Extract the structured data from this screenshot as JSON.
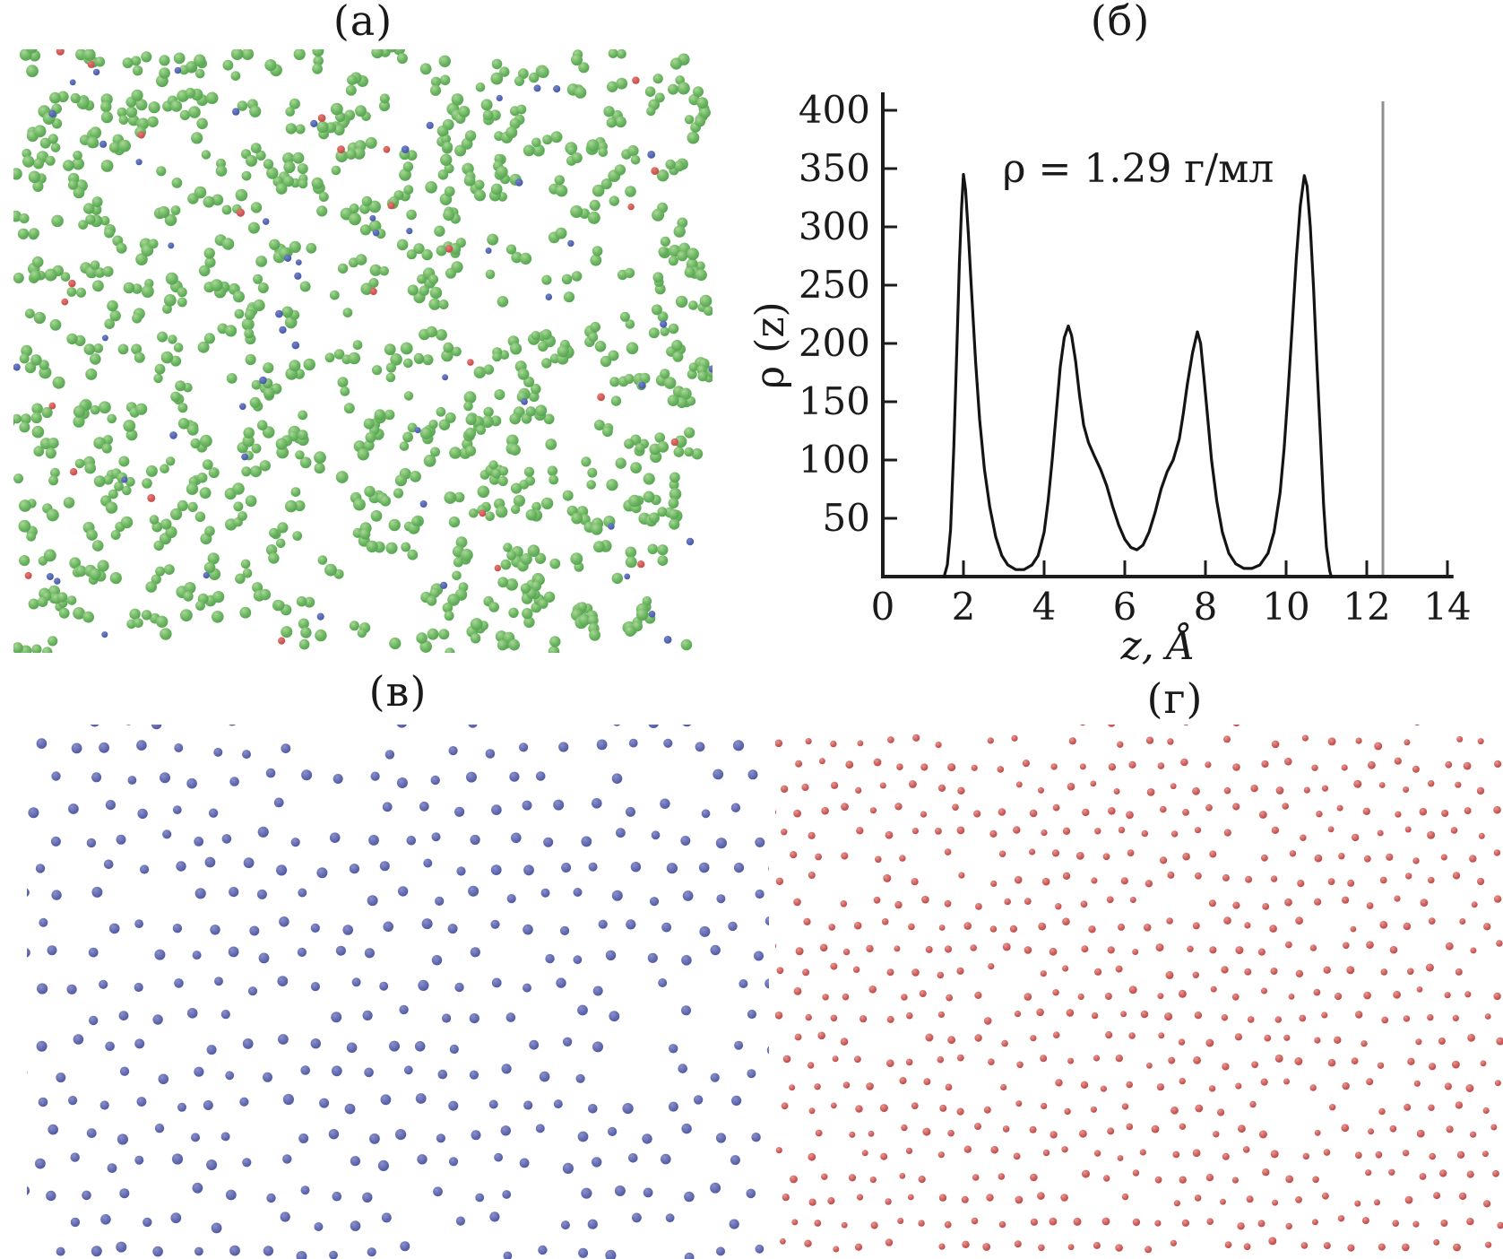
{
  "figure": {
    "background": "#ffffff",
    "panel_labels": {
      "a": "(а)",
      "b": "(б)",
      "v": "(в)",
      "g": "(г)"
    }
  },
  "panel_a": {
    "label": "(а)",
    "description": "molecular-dynamics snapshot, green spheres with sparse blue and red dots",
    "seed": 20240521,
    "green_particles": {
      "count": 640,
      "cluster_probs": [
        0.42,
        0.42,
        0.16
      ],
      "radius_min": 5.2,
      "radius_max": 7.0,
      "color_light": "#a9d797",
      "color_mid": "#6ab55f",
      "color_dark": "#4e9a50"
    },
    "blue_dots": {
      "count": 54,
      "radius_min": 3.4,
      "radius_max": 4.4,
      "color_light": "#7583c5",
      "color_dark": "#3a4ea6"
    },
    "red_dots": {
      "count": 26,
      "radius_min": 3.6,
      "radius_max": 4.6,
      "color_light": "#e27d75",
      "color_dark": "#c23e3e"
    }
  },
  "panel_v": {
    "label": "(в)",
    "description": "blue ion layer, quasi-hexagonal lattice",
    "seed": 777,
    "dots": {
      "spacing_x": 39,
      "spacing_y": 33,
      "jitter": 6.5,
      "skip": 0.1,
      "radius_min": 4.9,
      "radius_max": 6.1,
      "color_light": "#8a90c9",
      "color_mid": "#646cb1",
      "color_dark": "#434b9b"
    }
  },
  "panel_g": {
    "label": "(г)",
    "description": "red ion layer, denser quasi-hexagonal lattice",
    "seed": 424242,
    "dots": {
      "spacing_x": 29,
      "spacing_y": 25.5,
      "jitter": 5.0,
      "skip": 0.08,
      "radius_min": 3.4,
      "radius_max": 4.5,
      "color_light": "#e49892",
      "color_mid": "#cf5f5c",
      "color_dark": "#b03c3c"
    }
  },
  "chart_data": {
    "type": "line",
    "title": "(б)",
    "annotation": "ρ = 1.29 г/мл",
    "xlabel": "z, Å",
    "ylabel": "ρ (z)",
    "xlim": [
      0,
      14.2
    ],
    "ylim": [
      0,
      400
    ],
    "xticks": [
      0,
      2,
      4,
      6,
      8,
      10,
      12,
      14
    ],
    "yticks": [
      50,
      100,
      150,
      200,
      250,
      300,
      350,
      400
    ],
    "grid": false,
    "legend": "none",
    "axis_color": "#1c1c1c",
    "vline": {
      "x": 12.4,
      "color": "#8f8f8f"
    },
    "series": [
      {
        "name": "density profile",
        "color": "#141414",
        "points": [
          [
            1.52,
            0
          ],
          [
            1.6,
            10
          ],
          [
            1.68,
            40
          ],
          [
            1.76,
            110
          ],
          [
            1.84,
            200
          ],
          [
            1.9,
            270
          ],
          [
            1.95,
            315
          ],
          [
            2.0,
            345
          ],
          [
            2.05,
            332
          ],
          [
            2.12,
            295
          ],
          [
            2.2,
            245
          ],
          [
            2.3,
            185
          ],
          [
            2.4,
            135
          ],
          [
            2.52,
            92
          ],
          [
            2.65,
            60
          ],
          [
            2.8,
            34
          ],
          [
            2.95,
            18
          ],
          [
            3.1,
            10
          ],
          [
            3.3,
            6
          ],
          [
            3.5,
            6
          ],
          [
            3.7,
            10
          ],
          [
            3.85,
            18
          ],
          [
            4.0,
            38
          ],
          [
            4.1,
            65
          ],
          [
            4.2,
            100
          ],
          [
            4.3,
            140
          ],
          [
            4.4,
            180
          ],
          [
            4.5,
            205
          ],
          [
            4.6,
            215
          ],
          [
            4.68,
            207
          ],
          [
            4.78,
            185
          ],
          [
            4.88,
            155
          ],
          [
            4.98,
            130
          ],
          [
            5.1,
            115
          ],
          [
            5.25,
            103
          ],
          [
            5.4,
            92
          ],
          [
            5.55,
            78
          ],
          [
            5.7,
            60
          ],
          [
            5.85,
            44
          ],
          [
            6.0,
            32
          ],
          [
            6.15,
            25
          ],
          [
            6.3,
            23
          ],
          [
            6.45,
            27
          ],
          [
            6.6,
            38
          ],
          [
            6.75,
            55
          ],
          [
            6.9,
            75
          ],
          [
            7.05,
            90
          ],
          [
            7.2,
            100
          ],
          [
            7.35,
            118
          ],
          [
            7.45,
            140
          ],
          [
            7.55,
            165
          ],
          [
            7.68,
            192
          ],
          [
            7.8,
            210
          ],
          [
            7.88,
            200
          ],
          [
            7.96,
            172
          ],
          [
            8.05,
            138
          ],
          [
            8.15,
            100
          ],
          [
            8.28,
            65
          ],
          [
            8.42,
            38
          ],
          [
            8.58,
            20
          ],
          [
            8.75,
            11
          ],
          [
            8.95,
            7
          ],
          [
            9.15,
            7
          ],
          [
            9.35,
            10
          ],
          [
            9.55,
            20
          ],
          [
            9.7,
            38
          ],
          [
            9.85,
            72
          ],
          [
            9.95,
            110
          ],
          [
            10.05,
            160
          ],
          [
            10.15,
            215
          ],
          [
            10.25,
            272
          ],
          [
            10.35,
            318
          ],
          [
            10.45,
            344
          ],
          [
            10.52,
            335
          ],
          [
            10.6,
            300
          ],
          [
            10.68,
            248
          ],
          [
            10.76,
            185
          ],
          [
            10.85,
            120
          ],
          [
            10.93,
            62
          ],
          [
            11.0,
            25
          ],
          [
            11.08,
            5
          ],
          [
            11.12,
            0
          ]
        ]
      }
    ]
  }
}
